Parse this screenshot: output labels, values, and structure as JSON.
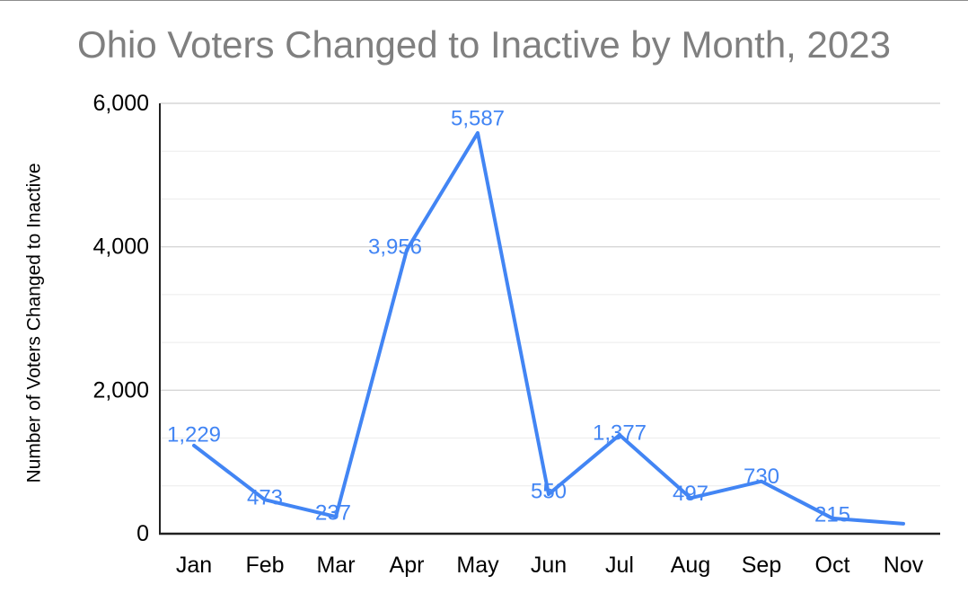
{
  "chart_data": {
    "type": "line",
    "title": "Ohio Voters Changed to Inactive by Month, 2023",
    "xlabel": "",
    "ylabel": "Number of Voters Changed to Inactive",
    "categories": [
      "Jan",
      "Feb",
      "Mar",
      "Apr",
      "May",
      "Jun",
      "Jul",
      "Aug",
      "Sep",
      "Oct",
      "Nov"
    ],
    "values": [
      1229,
      473,
      237,
      3956,
      5587,
      550,
      1377,
      497,
      730,
      215,
      140
    ],
    "point_labels": [
      "1,229",
      "473",
      "237",
      "3,956",
      "5,587",
      "550",
      "1,377",
      "497",
      "730",
      "215",
      ""
    ],
    "ylim": [
      0,
      6000
    ],
    "y_ticks": [
      {
        "value": 0,
        "label": "0"
      },
      {
        "value": 2000,
        "label": "2,000"
      },
      {
        "value": 4000,
        "label": "4,000"
      },
      {
        "value": 6000,
        "label": "6,000"
      }
    ],
    "minor_gridlines_per_major": 3,
    "grid": true,
    "legend_position": "none",
    "line_color": "#4285f4",
    "label_color": "#4285f4",
    "axis_color": "#212121",
    "major_grid_color": "#d6d6d6",
    "minor_grid_color": "#ececec",
    "tick_label_color": "#000000",
    "title_color": "#7f7f7f"
  }
}
